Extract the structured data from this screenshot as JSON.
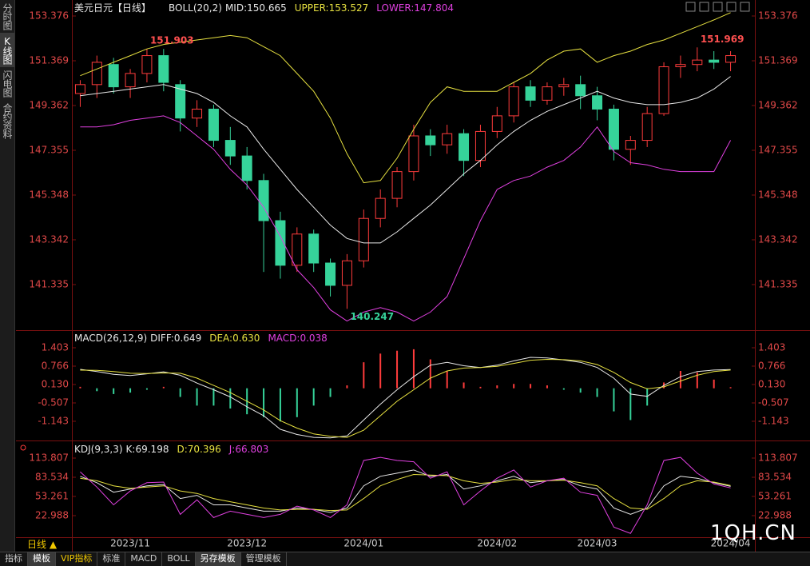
{
  "sidebar": [
    "分时图",
    "K线图",
    "闪电图",
    "合约资料"
  ],
  "period": "日线 ▲",
  "tabs": [
    "指标",
    "模板",
    "VIP指标",
    "标准",
    "MACD",
    "BOLL",
    "另存模板",
    "管理模板"
  ],
  "watermark": "1QH.CN",
  "chart_data": [
    {
      "type": "candlestick",
      "title": "美元日元【日线】",
      "indicator": "BOLL(20,2)",
      "categories": [
        null,
        null,
        null,
        "2023/11",
        null,
        null,
        null,
        null,
        null,
        null,
        "2023/12",
        null,
        null,
        null,
        null,
        null,
        null,
        "2024/01",
        null,
        null,
        null,
        null,
        null,
        null,
        null,
        "2024/02",
        null,
        null,
        null,
        null,
        null,
        "2024/03",
        null,
        null,
        null,
        null,
        null,
        null,
        null,
        "2024/04"
      ],
      "open": [
        149.9,
        150.3,
        151.2,
        150.2,
        150.8,
        151.6,
        150.3,
        148.8,
        149.2,
        147.8,
        147.1,
        146.0,
        144.2,
        142.2,
        143.6,
        142.3,
        141.3,
        142.4,
        144.3,
        145.2,
        146.4,
        148.0,
        147.6,
        148.1,
        146.9,
        148.2,
        148.9,
        150.2,
        149.6,
        150.2,
        150.3,
        149.8,
        149.2,
        147.4,
        147.8,
        149.0,
        151.1,
        151.2,
        151.4,
        151.3
      ],
      "high": [
        150.5,
        151.6,
        151.5,
        151.0,
        151.903,
        151.9,
        150.5,
        149.6,
        149.4,
        148.4,
        147.5,
        146.3,
        144.6,
        143.9,
        143.8,
        142.5,
        142.7,
        144.7,
        145.6,
        146.6,
        148.5,
        148.3,
        148.5,
        148.3,
        148.5,
        149.3,
        150.4,
        150.5,
        150.4,
        150.6,
        150.7,
        150.2,
        149.4,
        148.0,
        149.3,
        151.3,
        151.6,
        151.969,
        151.8,
        151.8
      ],
      "low": [
        149.3,
        149.7,
        149.9,
        149.7,
        150.4,
        150.0,
        148.2,
        148.4,
        147.5,
        146.7,
        145.6,
        141.9,
        141.6,
        141.9,
        141.9,
        140.8,
        140.247,
        142.1,
        143.9,
        144.8,
        146.0,
        147.1,
        147.2,
        146.2,
        146.6,
        147.9,
        148.6,
        149.3,
        149.4,
        149.8,
        149.2,
        148.7,
        146.9,
        146.7,
        147.5,
        148.9,
        150.6,
        150.9,
        151.0,
        150.9
      ],
      "close": [
        150.3,
        151.3,
        150.2,
        150.8,
        151.6,
        150.4,
        148.8,
        149.2,
        147.8,
        147.1,
        146.0,
        144.2,
        142.2,
        143.6,
        142.3,
        141.3,
        142.4,
        144.3,
        145.2,
        146.4,
        148.0,
        147.6,
        148.1,
        146.9,
        148.2,
        148.9,
        150.2,
        149.6,
        150.2,
        150.3,
        149.8,
        149.2,
        147.4,
        147.8,
        149.0,
        151.1,
        151.2,
        151.4,
        151.3,
        151.6
      ],
      "up_color": "#ff3c3c",
      "down_color": "#36d39a",
      "series": [
        {
          "name": "MID:",
          "color": "#e8e8e8",
          "values": [
            149.8,
            149.9,
            150.0,
            150.1,
            150.2,
            150.3,
            150.1,
            149.9,
            149.5,
            148.9,
            148.4,
            147.4,
            146.5,
            145.6,
            144.8,
            144.0,
            143.4,
            143.2,
            143.2,
            143.7,
            144.3,
            144.9,
            145.6,
            146.3,
            146.9,
            147.6,
            148.2,
            148.7,
            149.1,
            149.4,
            149.7,
            150.0,
            149.7,
            149.5,
            149.4,
            149.4,
            149.5,
            149.7,
            150.1,
            150.665
          ]
        },
        {
          "name": "UPPER:",
          "color": "#e6e040",
          "values": [
            150.7,
            151.0,
            151.3,
            151.6,
            151.9,
            152.1,
            152.2,
            152.3,
            152.4,
            152.5,
            152.4,
            152.0,
            151.6,
            150.8,
            150.0,
            148.8,
            147.2,
            145.9,
            146.0,
            147.0,
            148.3,
            149.5,
            150.2,
            150.0,
            150.0,
            150.0,
            150.4,
            150.8,
            151.4,
            151.8,
            151.9,
            151.3,
            151.6,
            151.8,
            152.1,
            152.3,
            152.6,
            152.9,
            153.2,
            153.527
          ]
        },
        {
          "name": "LOWER:",
          "color": "#e040e0",
          "values": [
            148.4,
            148.4,
            148.5,
            148.7,
            148.8,
            148.9,
            148.6,
            148.0,
            147.4,
            146.5,
            145.8,
            144.8,
            143.5,
            142.0,
            141.2,
            140.2,
            139.7,
            140.1,
            140.3,
            140.1,
            139.7,
            140.1,
            140.8,
            142.5,
            144.2,
            145.6,
            146.0,
            146.2,
            146.6,
            146.9,
            147.5,
            148.4,
            147.3,
            146.8,
            146.7,
            146.5,
            146.4,
            146.4,
            146.4,
            147.804
          ]
        }
      ],
      "annotations": [
        151.903,
        151.969,
        140.247
      ],
      "ylim": [
        139.326,
        154.093
      ],
      "yticks": [
        153.376,
        151.369,
        149.362,
        147.355,
        145.348,
        143.342,
        141.335
      ]
    },
    {
      "type": "macd",
      "title": "MACD(26,12,9)",
      "series": [
        {
          "name": "DIFF:",
          "color": "#e8e8e8",
          "values": [
            0.656,
            0.58,
            0.48,
            0.44,
            0.5,
            0.57,
            0.45,
            0.18,
            -0.05,
            -0.3,
            -0.64,
            -0.95,
            -1.42,
            -1.6,
            -1.7,
            -1.72,
            -1.65,
            -1.1,
            -0.55,
            -0.05,
            0.4,
            0.8,
            0.9,
            0.78,
            0.72,
            0.8,
            0.95,
            1.07,
            1.05,
            0.98,
            0.9,
            0.72,
            0.35,
            -0.2,
            -0.28,
            0.1,
            0.4,
            0.58,
            0.63,
            0.649
          ]
        },
        {
          "name": "DEA:",
          "color": "#e6e040",
          "last": {
            "value": 0.63,
            "label": "0.630"
          },
          "values": [
            0.628,
            0.62,
            0.58,
            0.52,
            0.51,
            0.53,
            0.52,
            0.35,
            0.1,
            -0.15,
            -0.45,
            -0.75,
            -1.12,
            -1.38,
            -1.58,
            -1.66,
            -1.7,
            -1.45,
            -0.95,
            -0.45,
            -0.05,
            0.35,
            0.6,
            0.7,
            0.72,
            0.76,
            0.86,
            0.97,
            1.0,
            0.99,
            0.95,
            0.82,
            0.55,
            0.2,
            -0.02,
            0.05,
            0.25,
            0.45,
            0.58,
            0.63
          ]
        },
        {
          "name": "MACD:",
          "color": "#e040e0",
          "style": "bar",
          "up_color": "#ff3c3c",
          "down_color": "#36d39a",
          "values": [
            0.05,
            -0.1,
            -0.2,
            -0.15,
            -0.05,
            0.05,
            -0.3,
            -0.6,
            -0.6,
            -0.7,
            -0.9,
            -1.0,
            -1.15,
            -1.0,
            -0.6,
            -0.3,
            0.1,
            0.9,
            1.2,
            1.3,
            1.35,
            1.0,
            0.6,
            0.2,
            0.05,
            0.1,
            0.15,
            0.15,
            0.1,
            -0.05,
            -0.15,
            -0.3,
            -0.8,
            -1.1,
            -0.6,
            0.2,
            0.6,
            0.55,
            0.3,
            0.038
          ]
        }
      ],
      "ylim": [
        -1.78,
        1.956
      ],
      "yticks": [
        1.403,
        0.766,
        {
          "value": 0.13,
          "label": "0.130"
        },
        -0.507,
        -1.143
      ]
    },
    {
      "type": "line",
      "title": "KDJ(9,3,3)",
      "series": [
        {
          "name": "K:",
          "color": "#e8e8e8",
          "values": [
            85,
            75,
            60,
            65,
            70,
            72,
            50,
            55,
            40,
            40,
            35,
            30,
            30,
            35,
            33,
            28,
            35,
            70,
            85,
            90,
            95,
            85,
            88,
            65,
            70,
            78,
            85,
            75,
            78,
            80,
            70,
            65,
            35,
            25,
            35,
            70,
            85,
            82,
            75,
            69.198
          ]
        },
        {
          "name": "D:",
          "color": "#e6e040",
          "values": [
            82,
            78,
            70,
            66,
            68,
            70,
            62,
            58,
            50,
            45,
            40,
            35,
            32,
            33,
            33,
            31,
            32,
            50,
            70,
            80,
            88,
            87,
            86,
            78,
            74,
            76,
            80,
            78,
            78,
            79,
            75,
            70,
            50,
            35,
            33,
            50,
            70,
            78,
            76,
            70.396
          ]
        },
        {
          "name": "J:",
          "color": "#e040e0",
          "values": [
            92,
            68,
            40,
            62,
            75,
            76,
            25,
            48,
            20,
            30,
            25,
            20,
            25,
            38,
            32,
            20,
            40,
            110,
            115,
            110,
            108,
            82,
            92,
            40,
            62,
            82,
            95,
            68,
            78,
            82,
            60,
            55,
            5,
            -5,
            40,
            110,
            115,
            90,
            73,
            66.803
          ]
        }
      ],
      "ylim": [
        -11.07,
        139.04
      ],
      "yticks": [
        113.807,
        83.534,
        53.261,
        22.988
      ]
    }
  ]
}
